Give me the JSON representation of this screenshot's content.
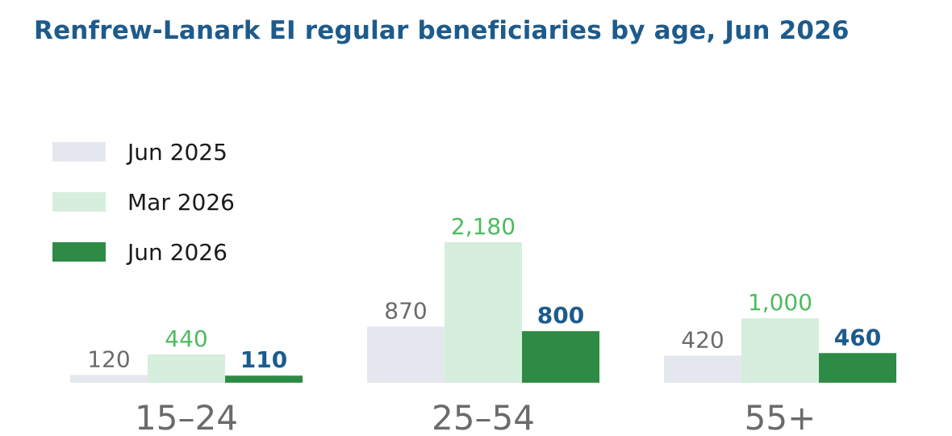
{
  "chart_data": {
    "type": "bar",
    "title": "Renfrew-Lanark EI regular beneficiaries by age, Jun 2026",
    "categories": [
      "15–24",
      "25–54",
      "55+"
    ],
    "series": [
      {
        "name": "Jun 2025",
        "values": [
          120,
          870,
          420
        ],
        "value_labels": [
          "120",
          "870",
          "420"
        ],
        "color": "#e4e8ee",
        "label_color": "#6b6b6b",
        "label_bold": false
      },
      {
        "name": "Mar 2026",
        "values": [
          440,
          2180,
          1000
        ],
        "value_labels": [
          "440",
          "2,180",
          "1,000"
        ],
        "color": "#d6eedd",
        "label_color": "#4dbb5f",
        "label_bold": false
      },
      {
        "name": "Jun 2026",
        "values": [
          110,
          800,
          460
        ],
        "value_labels": [
          "110",
          "800",
          "460"
        ],
        "color": "#2e8b45",
        "label_color": "#1d5b8c",
        "label_bold": true
      }
    ],
    "xlabel": "",
    "ylabel": "",
    "ylim": [
      0,
      2180
    ],
    "grid": false,
    "legend": "top-left"
  }
}
